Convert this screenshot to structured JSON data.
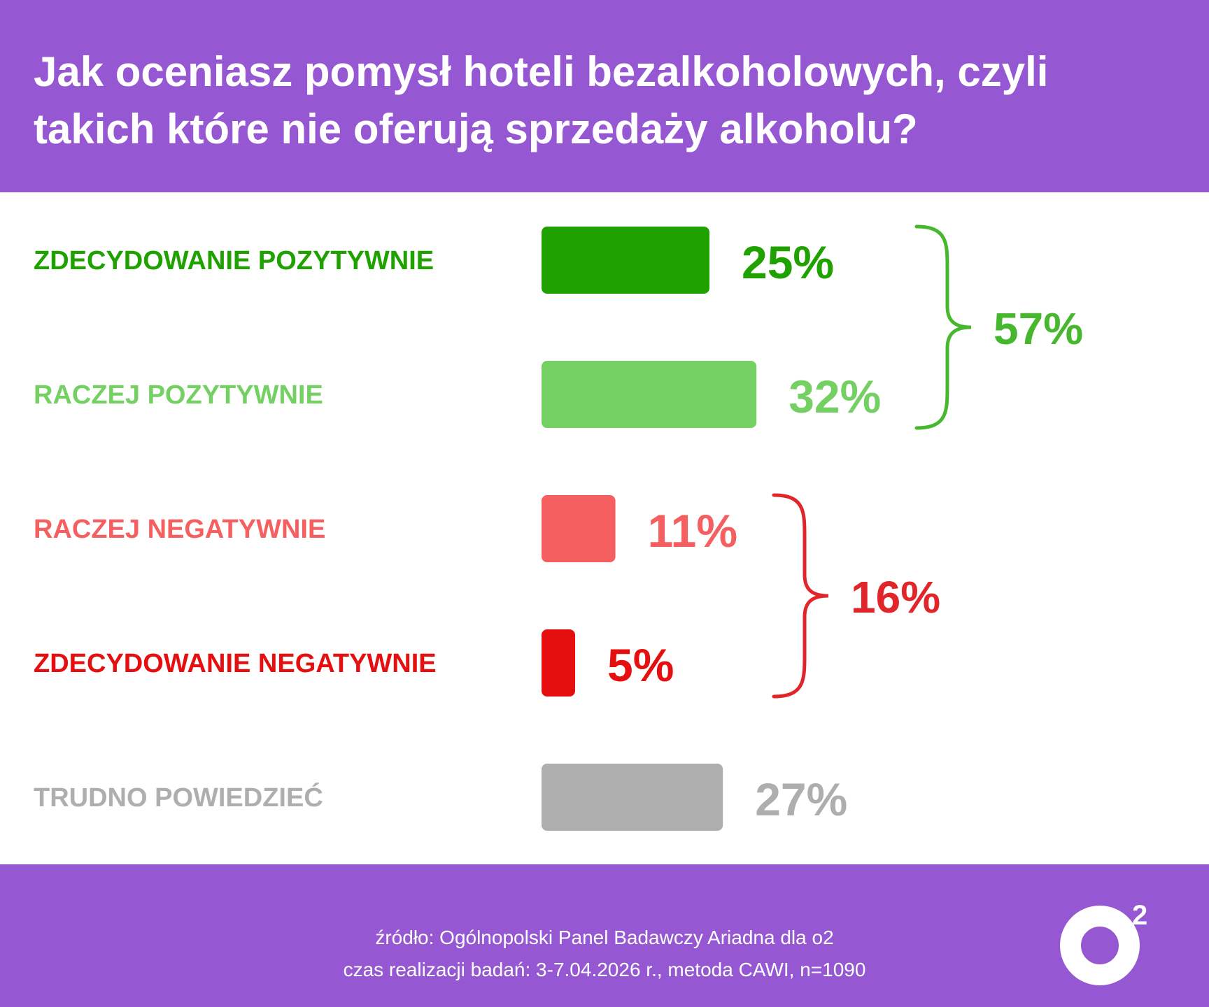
{
  "header": {
    "title_line1": "Jak oceniasz pomysł hoteli bezalkoholowych, czyli",
    "title_line2": "takich które nie oferują sprzedaży alkoholu?"
  },
  "chart_data": {
    "type": "bar",
    "orientation": "horizontal",
    "categories": [
      "ZDECYDOWANIE POZYTYWNIE",
      "RACZEJ POZYTYWNIE",
      "RACZEJ NEGATYWNIE",
      "ZDECYDOWANIE NEGATYWNIE",
      "TRUDNO POWIEDZIEĆ"
    ],
    "values": [
      25,
      32,
      11,
      5,
      27
    ],
    "value_labels": [
      "25%",
      "32%",
      "11%",
      "5%",
      "27%"
    ],
    "colors": [
      "#1fa200",
      "#74d063",
      "#f55f60",
      "#e60f10",
      "#aeaeae"
    ],
    "groups": [
      {
        "label": "57%",
        "value": 57,
        "members": [
          0,
          1
        ],
        "color": "#47b82e"
      },
      {
        "label": "16%",
        "value": 16,
        "members": [
          2,
          3
        ],
        "color": "#e0262a"
      }
    ]
  },
  "footer": {
    "source_line1": "źródło: Ogólnopolski Panel Badawczy Ariadna dla o2",
    "source_line2": "czas realizacji badań: 3-7.04.2026 r., metoda CAWI, n=1090",
    "logo_text": "o",
    "logo_superscript": "2"
  },
  "colors": {
    "brand_purple": "#9657d2",
    "white": "#ffffff"
  }
}
